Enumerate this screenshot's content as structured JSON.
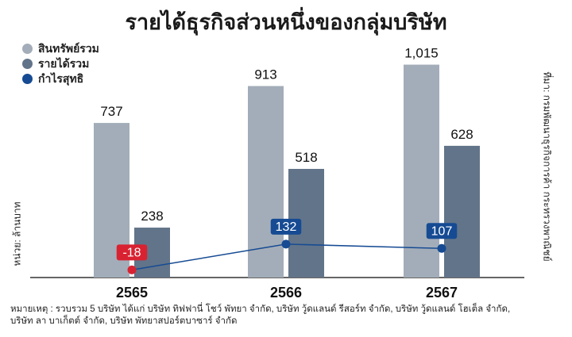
{
  "chart_data": {
    "type": "bar",
    "title": "รายได้ธุรกิจส่วนหนึ่งของกลุ่มบริษัท",
    "categories": [
      "2565",
      "2566",
      "2567"
    ],
    "series": [
      {
        "name": "สินทรัพย์รวม",
        "type": "bar",
        "color": "#a3adb9",
        "values": [
          737,
          913,
          1015
        ],
        "labels": [
          "737",
          "913",
          "1,015"
        ]
      },
      {
        "name": "รายได้รวม",
        "type": "bar",
        "color": "#627489",
        "values": [
          238,
          518,
          628
        ],
        "labels": [
          "238",
          "518",
          "628"
        ]
      },
      {
        "name": "กำไรสุทธิ",
        "type": "line",
        "color": "#164b93",
        "values": [
          -18,
          132,
          107
        ],
        "labels": [
          "-18",
          "132",
          "107"
        ],
        "negative_color": "#d92231"
      }
    ],
    "unit_label": "หน่วย: ล้านบาท",
    "source_label": "ที่มา: กรมพัฒนาธุรกิจการค้า กระทรวงพาณิชย์",
    "grid": false,
    "legend_position": "top-left"
  },
  "footnote": {
    "line1": "หมายเหตุ : รวบรวม 5 บริษัท ได้แก่ บริษัท ทิฟฟานี่ โชว์ พัทยา จำกัด, บริษัท วู้ดแลนด์ รีสอร์ท จำกัด, บริษัท วู้ดแลนด์ โฮเต็ล จำกัด,",
    "line2": "บริษัท ลา บาเก็ตต์ จำกัด, บริษัท พัทยาสปอร์ตบาซาร์ จำกัด"
  }
}
